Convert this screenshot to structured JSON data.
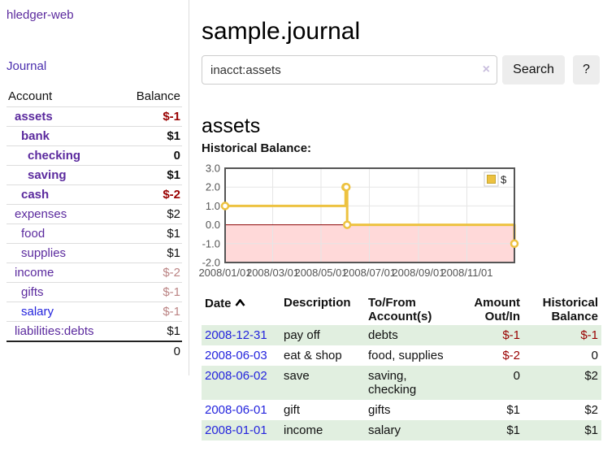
{
  "sidebar": {
    "brand": "hledger-web",
    "nav": {
      "journal": "Journal"
    },
    "accounts_table": {
      "headers": {
        "account": "Account",
        "balance": "Balance"
      },
      "rows": [
        {
          "name": "assets",
          "depth": 1,
          "bold": true,
          "balance": "$-1",
          "balance_style": "neg"
        },
        {
          "name": "bank",
          "depth": 2,
          "bold": true,
          "balance": "$1",
          "balance_style": "normal"
        },
        {
          "name": "checking",
          "depth": 3,
          "bold": true,
          "balance": "0",
          "balance_style": "normal"
        },
        {
          "name": "saving",
          "depth": 3,
          "bold": true,
          "balance": "$1",
          "balance_style": "normal"
        },
        {
          "name": "cash",
          "depth": 2,
          "bold": true,
          "balance": "$-2",
          "balance_style": "neg"
        },
        {
          "name": "expenses",
          "depth": 1,
          "bold": false,
          "balance": "$2",
          "balance_style": "normal"
        },
        {
          "name": "food",
          "depth": 2,
          "bold": false,
          "balance": "$1",
          "balance_style": "normal"
        },
        {
          "name": "supplies",
          "depth": 2,
          "bold": false,
          "balance": "$1",
          "balance_style": "normal"
        },
        {
          "name": "income",
          "depth": 1,
          "bold": false,
          "balance": "$-2",
          "balance_style": "dimneg"
        },
        {
          "name": "gifts",
          "depth": 2,
          "bold": false,
          "balance": "$-1",
          "balance_style": "dimneg"
        },
        {
          "name": "salary",
          "depth": 2,
          "bold": false,
          "balance": "$-1",
          "balance_style": "dimneg",
          "link_color": "blue"
        },
        {
          "name": "liabilities:debts",
          "depth": 1,
          "bold": false,
          "balance": "$1",
          "balance_style": "normal"
        }
      ],
      "total": "0"
    }
  },
  "header": {
    "title": "sample.journal"
  },
  "search": {
    "value": "inacct:assets",
    "clear_icon": "×",
    "button": "Search",
    "help_button": "?"
  },
  "account_page": {
    "heading": "assets",
    "chart_label": "Historical Balance:"
  },
  "chart_data": {
    "type": "line",
    "title": "Historical Balance:",
    "steps": true,
    "x_range": [
      "2008-01-01",
      "2008-12-31"
    ],
    "ylim": [
      -2,
      3
    ],
    "y_ticks": [
      {
        "label": "3.0",
        "value": 3
      },
      {
        "label": "2.0",
        "value": 2
      },
      {
        "label": "1.0",
        "value": 1
      },
      {
        "label": "0.0",
        "value": 0
      },
      {
        "label": "-1.0",
        "value": -1
      },
      {
        "label": "-2.0",
        "value": -2
      }
    ],
    "x_ticks": [
      {
        "label": "2008/01/01",
        "date": "2008-01-01"
      },
      {
        "label": "2008/03/01",
        "date": "2008-03-01"
      },
      {
        "label": "2008/05/01",
        "date": "2008-05-01"
      },
      {
        "label": "2008/07/01",
        "date": "2008-07-01"
      },
      {
        "label": "2008/09/01",
        "date": "2008-09-01"
      },
      {
        "label": "2008/11/01",
        "date": "2008-11-01"
      }
    ],
    "series": [
      {
        "name": "$",
        "color": "#edc240",
        "points": [
          {
            "date": "2008-01-01",
            "value": 1
          },
          {
            "date": "2008-06-01",
            "value": 2
          },
          {
            "date": "2008-06-02",
            "value": 2
          },
          {
            "date": "2008-06-03",
            "value": 0
          },
          {
            "date": "2008-12-31",
            "value": -1
          }
        ]
      }
    ],
    "legend_position": "top-right",
    "grid": true,
    "negative_region_color": "#ffd9d9",
    "zero_line_color": "#8b0000",
    "grid_color": "#e6e6e6",
    "border_color": "#555555",
    "label_color": "#545454"
  },
  "txn_table": {
    "headers": {
      "date": "Date",
      "description": "Description",
      "accounts": "To/From Account(s)",
      "amount": "Amount Out/In",
      "balance": "Historical Balance"
    },
    "rows": [
      {
        "date": "2008-12-31",
        "description": "pay off",
        "accounts": "debts",
        "amount": "$-1",
        "amount_neg": true,
        "balance": "$-1",
        "balance_neg": true
      },
      {
        "date": "2008-06-03",
        "description": "eat & shop",
        "accounts": "food, supplies",
        "amount": "$-2",
        "amount_neg": true,
        "balance": "0",
        "balance_neg": false
      },
      {
        "date": "2008-06-02",
        "description": "save",
        "accounts": "saving, checking",
        "amount": "0",
        "amount_neg": false,
        "balance": "$2",
        "balance_neg": false
      },
      {
        "date": "2008-06-01",
        "description": "gift",
        "accounts": "gifts",
        "amount": "$1",
        "amount_neg": false,
        "balance": "$2",
        "balance_neg": false
      },
      {
        "date": "2008-01-01",
        "description": "income",
        "accounts": "salary",
        "amount": "$1",
        "amount_neg": false,
        "balance": "$1",
        "balance_neg": false
      }
    ]
  },
  "colors": {
    "link_purple": "#5b2a9e",
    "link_blue": "#2424dd",
    "negative_red": "#990000",
    "dim_negative": "#bb8484",
    "row_stripe_green": "#e1efe0",
    "button_gray": "#ededed",
    "series_yellow": "#edc240"
  }
}
